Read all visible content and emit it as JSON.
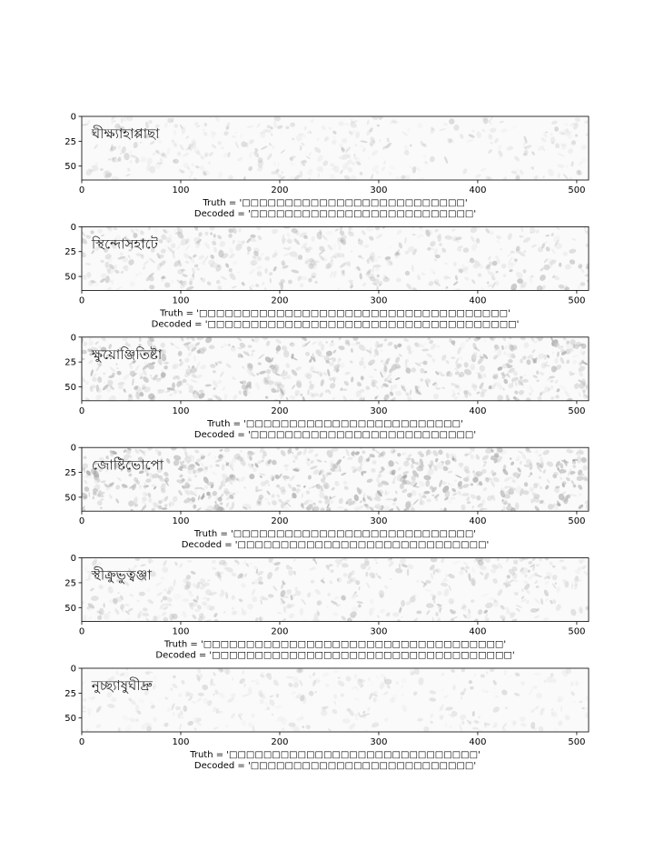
{
  "chart_data": [
    {
      "type": "heatmap",
      "x_ticks": [
        0,
        100,
        200,
        300,
        400,
        500
      ],
      "y_ticks": [
        0,
        25,
        50
      ],
      "xlim": [
        0,
        512
      ],
      "ylim": [
        64,
        0
      ],
      "grid": false,
      "word_image": "ঘীক্ষ্যাহাপ্পাছা",
      "noise_level": 0.25,
      "truth": "Truth = '□□□□□□□□□□□□□□□□□□□□□□□□□□'",
      "decoded": "Decoded = '□□□□□□□□□□□□□□□□□□□□□□□□□□'"
    },
    {
      "type": "heatmap",
      "x_ticks": [
        0,
        100,
        200,
        300,
        400,
        500
      ],
      "y_ticks": [
        0,
        25,
        50
      ],
      "xlim": [
        0,
        512
      ],
      "ylim": [
        64,
        0
      ],
      "grid": false,
      "word_image": "স্থিন্দোসহাটে",
      "noise_level": 0.45,
      "truth": "Truth = '□□□□□□□□□□□□□□□□□□□□□□□□□□□□□□□□□□□□'",
      "decoded": "Decoded = '□□□□□□□□□□□□□□□□□□□□□□□□□□□□□□□□□□□□'"
    },
    {
      "type": "heatmap",
      "x_ticks": [
        0,
        100,
        200,
        300,
        400,
        500
      ],
      "y_ticks": [
        0,
        25,
        50
      ],
      "xlim": [
        0,
        512
      ],
      "ylim": [
        64,
        0
      ],
      "grid": false,
      "word_image": "ক্ষুয়োঞ্জিতিষ্টা",
      "noise_level": 0.7,
      "truth": "Truth = '□□□□□□□□□□□□□□□□□□□□□□□□□'",
      "decoded": "Decoded = '□□□□□□□□□□□□□□□□□□□□□□□□□□'"
    },
    {
      "type": "heatmap",
      "x_ticks": [
        0,
        100,
        200,
        300,
        400,
        500
      ],
      "y_ticks": [
        0,
        25,
        50
      ],
      "xlim": [
        0,
        512
      ],
      "ylim": [
        64,
        0
      ],
      "grid": false,
      "word_image": "জোষ্টিভোপো",
      "noise_level": 0.8,
      "truth": "Truth = '□□□□□□□□□□□□□□□□□□□□□□□□□□□□'",
      "decoded": "Decoded = '□□□□□□□□□□□□□□□□□□□□□□□□□□□□□'"
    },
    {
      "type": "heatmap",
      "x_ticks": [
        0,
        100,
        200,
        300,
        400,
        500
      ],
      "y_ticks": [
        0,
        25,
        50
      ],
      "xlim": [
        0,
        512
      ],
      "ylim": [
        64,
        0
      ],
      "grid": false,
      "word_image": "স্থীক্রুভুত্বঞ্জা",
      "noise_level": 0.4,
      "truth": "Truth = '□□□□□□□□□□□□□□□□□□□□□□□□□□□□□□□□□□□'",
      "decoded": "Decoded = '□□□□□□□□□□□□□□□□□□□□□□□□□□□□□□□□□□□'"
    },
    {
      "type": "heatmap",
      "x_ticks": [
        0,
        100,
        200,
        300,
        400,
        500
      ],
      "y_ticks": [
        0,
        25,
        50
      ],
      "xlim": [
        0,
        512
      ],
      "ylim": [
        64,
        0
      ],
      "grid": false,
      "word_image": "নুচ্ছ্যাষুঘীদ্রু",
      "noise_level": 0.15,
      "truth": "Truth = '□□□□□□□□□□□□□□□□□□□□□□□□□□□□□'",
      "decoded": "Decoded = '□□□□□□□□□□□□□□□□□□□□□□□□□□'"
    }
  ]
}
